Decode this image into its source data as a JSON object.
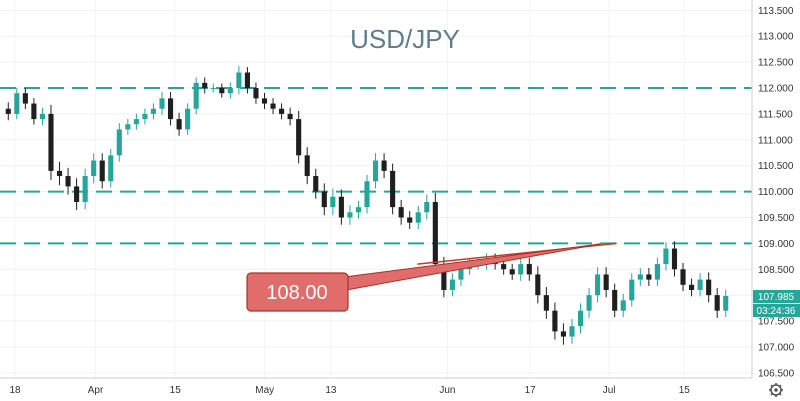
{
  "chart_data": {
    "type": "candlestick",
    "title": "USD/JPY",
    "ylim": [
      106.4,
      113.7
    ],
    "y_ticks": [
      "113.500",
      "113.000",
      "112.500",
      "112.000",
      "111.500",
      "111.000",
      "110.500",
      "110.000",
      "109.500",
      "109.000",
      "108.500",
      "108.000",
      "107.500",
      "107.000",
      "106.500"
    ],
    "x_ticks": [
      "18",
      "Apr",
      "15",
      "May",
      "13",
      "Jun",
      "17",
      "Jul",
      "15"
    ],
    "horizontal_levels": [
      112.0,
      110.0,
      109.0
    ],
    "trendline": {
      "from": [
        0.555,
        108.6
      ],
      "to": [
        0.82,
        109.0
      ]
    },
    "callout": {
      "label": "108.00"
    },
    "last_price": "107.985",
    "countdown": "03:24:36",
    "series": [
      {
        "close": [
          111.5,
          111.9,
          111.7,
          111.4,
          111.5,
          110.4,
          110.3,
          110.1,
          109.8,
          110.3,
          110.6,
          110.2,
          110.7,
          111.2,
          111.3,
          111.4,
          111.5,
          111.6,
          111.8,
          111.4,
          111.2,
          111.6,
          112.1,
          112.0,
          112.0,
          111.9,
          112.0,
          112.3,
          112.0,
          111.8,
          111.7,
          111.6,
          111.5,
          111.4,
          110.7,
          110.3,
          110.0,
          109.7,
          109.9,
          109.5,
          109.6,
          109.7,
          110.2,
          110.6,
          110.4,
          109.7,
          109.5,
          109.4,
          109.6,
          109.8,
          108.6,
          108.1,
          108.3,
          108.5,
          108.6,
          108.6,
          108.7,
          108.6,
          108.5,
          108.4,
          108.6,
          108.4,
          108.0,
          107.7,
          107.3,
          107.2,
          107.4,
          107.7,
          108.0,
          108.4,
          108.1,
          107.7,
          107.9,
          108.3,
          108.4,
          108.3,
          108.6,
          108.9,
          108.5,
          108.2,
          108.1,
          108.3,
          108.0,
          107.7,
          107.985
        ],
        "range": [
          0.35,
          0.3,
          0.3,
          0.3,
          0.35,
          0.5,
          0.5,
          0.45,
          0.45,
          0.4,
          0.4,
          0.4,
          0.35,
          0.35,
          0.3,
          0.3,
          0.3,
          0.3,
          0.35,
          0.35,
          0.35,
          0.3,
          0.3,
          0.3,
          0.25,
          0.25,
          0.3,
          0.35,
          0.3,
          0.3,
          0.3,
          0.3,
          0.3,
          0.35,
          0.45,
          0.45,
          0.4,
          0.45,
          0.45,
          0.4,
          0.4,
          0.35,
          0.35,
          0.4,
          0.4,
          0.4,
          0.4,
          0.35,
          0.35,
          0.4,
          0.5,
          0.4,
          0.35,
          0.35,
          0.3,
          0.3,
          0.3,
          0.3,
          0.3,
          0.3,
          0.35,
          0.35,
          0.45,
          0.45,
          0.45,
          0.45,
          0.4,
          0.4,
          0.4,
          0.4,
          0.4,
          0.35,
          0.35,
          0.35,
          0.35,
          0.35,
          0.35,
          0.35,
          0.4,
          0.35,
          0.35,
          0.35,
          0.4,
          0.4,
          0.35
        ]
      }
    ],
    "colors": {
      "up": "#26a69a",
      "down": "#1f1f1f",
      "level": "#26a69a",
      "trend": "#c0392b",
      "callout_fill": "#e06c6c",
      "callout_border": "#a93226",
      "price_tag": "#26a69a",
      "title": "#607d8b"
    }
  }
}
